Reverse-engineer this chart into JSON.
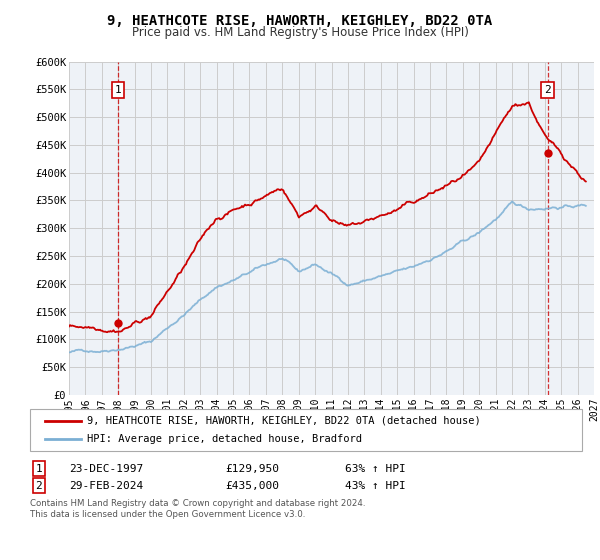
{
  "title": "9, HEATHCOTE RISE, HAWORTH, KEIGHLEY, BD22 0TA",
  "subtitle": "Price paid vs. HM Land Registry's House Price Index (HPI)",
  "xlim": [
    1995,
    2027
  ],
  "ylim": [
    0,
    600000
  ],
  "yticks": [
    0,
    50000,
    100000,
    150000,
    200000,
    250000,
    300000,
    350000,
    400000,
    450000,
    500000,
    550000,
    600000
  ],
  "ytick_labels": [
    "£0",
    "£50K",
    "£100K",
    "£150K",
    "£200K",
    "£250K",
    "£300K",
    "£350K",
    "£400K",
    "£450K",
    "£500K",
    "£550K",
    "£600K"
  ],
  "xticks": [
    1995,
    1996,
    1997,
    1998,
    1999,
    2000,
    2001,
    2002,
    2003,
    2004,
    2005,
    2006,
    2007,
    2008,
    2009,
    2010,
    2011,
    2012,
    2013,
    2014,
    2015,
    2016,
    2017,
    2018,
    2019,
    2020,
    2021,
    2022,
    2023,
    2024,
    2025,
    2026,
    2027
  ],
  "property_line_color": "#cc0000",
  "hpi_line_color": "#7bafd4",
  "marker_color": "#cc0000",
  "dashed_line_color": "#cc0000",
  "grid_color": "#cccccc",
  "background_color": "#eef2f7",
  "legend_label_property": "9, HEATHCOTE RISE, HAWORTH, KEIGHLEY, BD22 0TA (detached house)",
  "legend_label_hpi": "HPI: Average price, detached house, Bradford",
  "sale1_date": "23-DEC-1997",
  "sale1_price": "£129,950",
  "sale1_hpi": "63% ↑ HPI",
  "sale1_x": 1997.97,
  "sale1_y": 129950,
  "sale2_date": "29-FEB-2024",
  "sale2_price": "£435,000",
  "sale2_hpi": "43% ↑ HPI",
  "sale2_x": 2024.17,
  "sale2_y": 435000,
  "footnote1": "Contains HM Land Registry data © Crown copyright and database right 2024.",
  "footnote2": "This data is licensed under the Open Government Licence v3.0."
}
